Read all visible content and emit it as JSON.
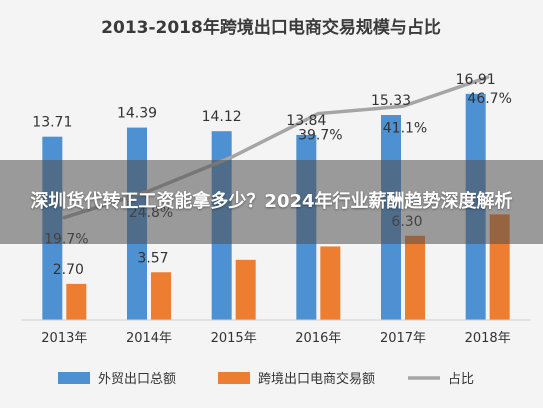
{
  "overlay": {
    "headline": "深圳货代转正工资能拿多少？2024年行业薪酬趋势深度解析"
  },
  "colors": {
    "background": "#f4f4f4",
    "series_1": "#4e91d2",
    "series_2": "#ed7d31",
    "series_3": "#a5a5a5"
  },
  "chart_data": {
    "type": "bar",
    "title": "2013-2018年跨境出口电商交易规模与占比",
    "categories": [
      "2013年",
      "2014年",
      "2015年",
      "2016年",
      "2017年",
      "2018年"
    ],
    "series": [
      {
        "name": "外贸出口总额",
        "type": "bar",
        "values": [
          13.71,
          14.39,
          14.12,
          13.84,
          15.33,
          16.91
        ],
        "labels": [
          "13.71",
          "14.39",
          "14.12",
          "13.84",
          "15.33",
          "16.91"
        ]
      },
      {
        "name": "跨境出口电商交易额",
        "type": "bar",
        "values": [
          2.7,
          3.57,
          4.5,
          5.5,
          6.3,
          7.9
        ],
        "labels": [
          "2.70",
          "3.57",
          "",
          "",
          "6.30",
          ""
        ]
      },
      {
        "name": "占比",
        "type": "line",
        "values": [
          19.7,
          24.8,
          31.5,
          39.7,
          41.1,
          46.7
        ],
        "labels": [
          "19.7%",
          "24.8%",
          "",
          "39.7%",
          "41.1%",
          "46.7%"
        ]
      }
    ],
    "legend_position": "bottom",
    "grid": false
  }
}
